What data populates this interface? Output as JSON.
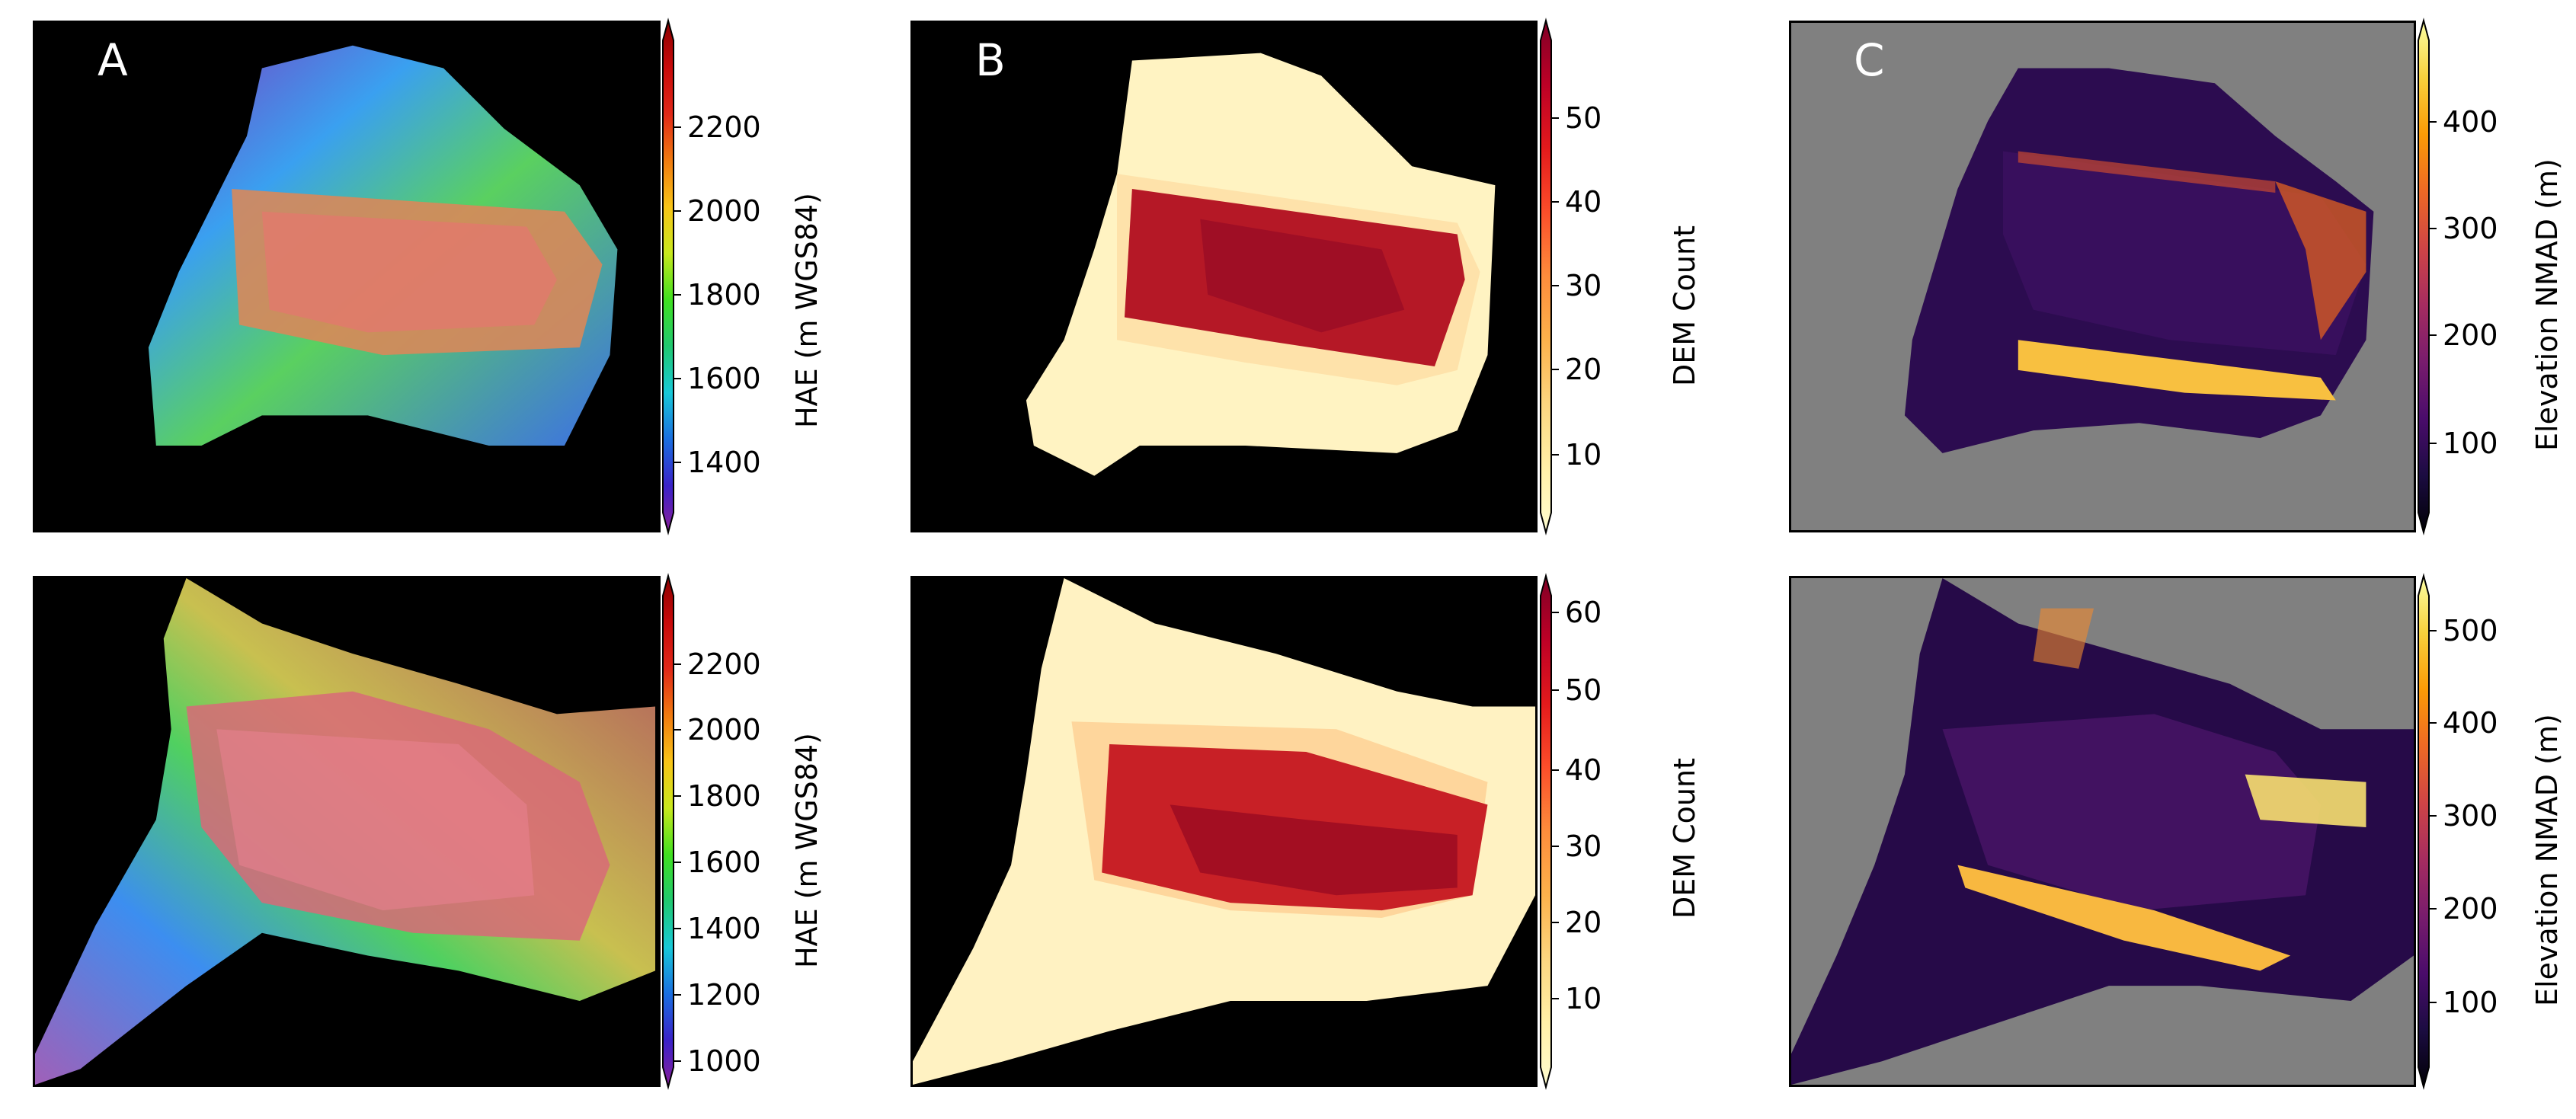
{
  "figure": {
    "panels": [
      {
        "letter": "A",
        "background": "#000000"
      },
      {
        "letter": "B",
        "background": "#000000"
      },
      {
        "letter": "C",
        "background": "#808080"
      }
    ],
    "colorbars": [
      {
        "label": "HAE (m WGS84)",
        "cmap": "nipy_spectral",
        "ticks": [
          "1400",
          "1600",
          "1800",
          "2000",
          "2200"
        ],
        "extend": "both"
      },
      {
        "label": "DEM Count",
        "cmap": "YlOrRd",
        "ticks": [
          "10",
          "20",
          "30",
          "40",
          "50"
        ],
        "extend": "both"
      },
      {
        "label": "Elevation NMAD (m)",
        "cmap": "inferno",
        "ticks": [
          "100",
          "200",
          "300",
          "400"
        ],
        "extend": "both"
      },
      {
        "label": "HAE (m WGS84)",
        "cmap": "nipy_spectral",
        "ticks": [
          "1000",
          "1200",
          "1400",
          "1600",
          "1800",
          "2000",
          "2200"
        ],
        "extend": "both"
      },
      {
        "label": "DEM Count",
        "cmap": "YlOrRd",
        "ticks": [
          "10",
          "20",
          "30",
          "40",
          "50",
          "60"
        ],
        "extend": "both"
      },
      {
        "label": "Elevation NMAD (m)",
        "cmap": "inferno",
        "ticks": [
          "100",
          "200",
          "300",
          "400",
          "500"
        ],
        "extend": "both"
      }
    ]
  },
  "colors": {
    "nipy_spectral": [
      "#8a1e9a",
      "#3a22c8",
      "#1a6ee0",
      "#18c8d8",
      "#20c870",
      "#40e020",
      "#c8e81e",
      "#f8c418",
      "#f07a10",
      "#e02818",
      "#c80a0a",
      "#8a0000"
    ],
    "YlOrRd": [
      "#fffdd0",
      "#fff0a8",
      "#fed680",
      "#feb24c",
      "#fd8d3c",
      "#fc4e2a",
      "#e31a1c",
      "#bd0026",
      "#800026"
    ],
    "inferno": [
      "#000004",
      "#1b0c41",
      "#4a0c6b",
      "#781c6d",
      "#a52c60",
      "#cf4446",
      "#ed6925",
      "#fb9b06",
      "#f7d13d",
      "#fcffa4"
    ]
  }
}
